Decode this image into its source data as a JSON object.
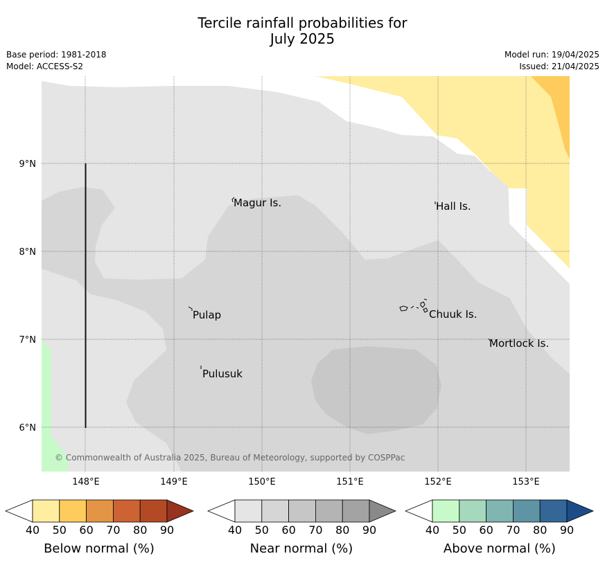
{
  "title_line1": "Tercile rainfall probabilities for",
  "title_line2": "July 2025",
  "base_period": "Base period: 1981-2018",
  "model": "Model: ACCESS-S2",
  "model_run": "Model run: 19/04/2025",
  "issued": "Issued: 21/04/2025",
  "copyright": "© Commonwealth of Australia 2025, Bureau of Meteorology, supported by COSPPac",
  "axes": {
    "lon_labels": [
      "148°E",
      "149°E",
      "150°E",
      "151°E",
      "152°E",
      "153°E"
    ],
    "lat_labels": [
      "9°N",
      "8°N",
      "7°N",
      "6°N"
    ]
  },
  "places": [
    {
      "name": "Magur Is."
    },
    {
      "name": "Hall Is."
    },
    {
      "name": "Pulap"
    },
    {
      "name": "Chuuk Is."
    },
    {
      "name": "Mortlock Is."
    },
    {
      "name": "Pulusuk"
    }
  ],
  "colorbars": [
    {
      "title": "Below normal (%)",
      "ticks": [
        "40",
        "50",
        "60",
        "70",
        "80",
        "90"
      ],
      "colors": [
        "#ffeda0",
        "#fecc5c",
        "#e39545",
        "#cd6232",
        "#b24b25",
        "#97331e"
      ]
    },
    {
      "title": "Near normal (%)",
      "ticks": [
        "40",
        "50",
        "60",
        "70",
        "80",
        "90"
      ],
      "colors": [
        "#e5e5e5",
        "#d6d6d6",
        "#c6c6c6",
        "#b4b4b4",
        "#a3a3a3",
        "#8a8a8a"
      ]
    },
    {
      "title": "Above normal (%)",
      "ticks": [
        "40",
        "50",
        "60",
        "70",
        "80",
        "90"
      ],
      "colors": [
        "#c7fac8",
        "#a5d8bd",
        "#80b5b1",
        "#5e94a3",
        "#346698",
        "#1b4c88"
      ]
    }
  ]
}
